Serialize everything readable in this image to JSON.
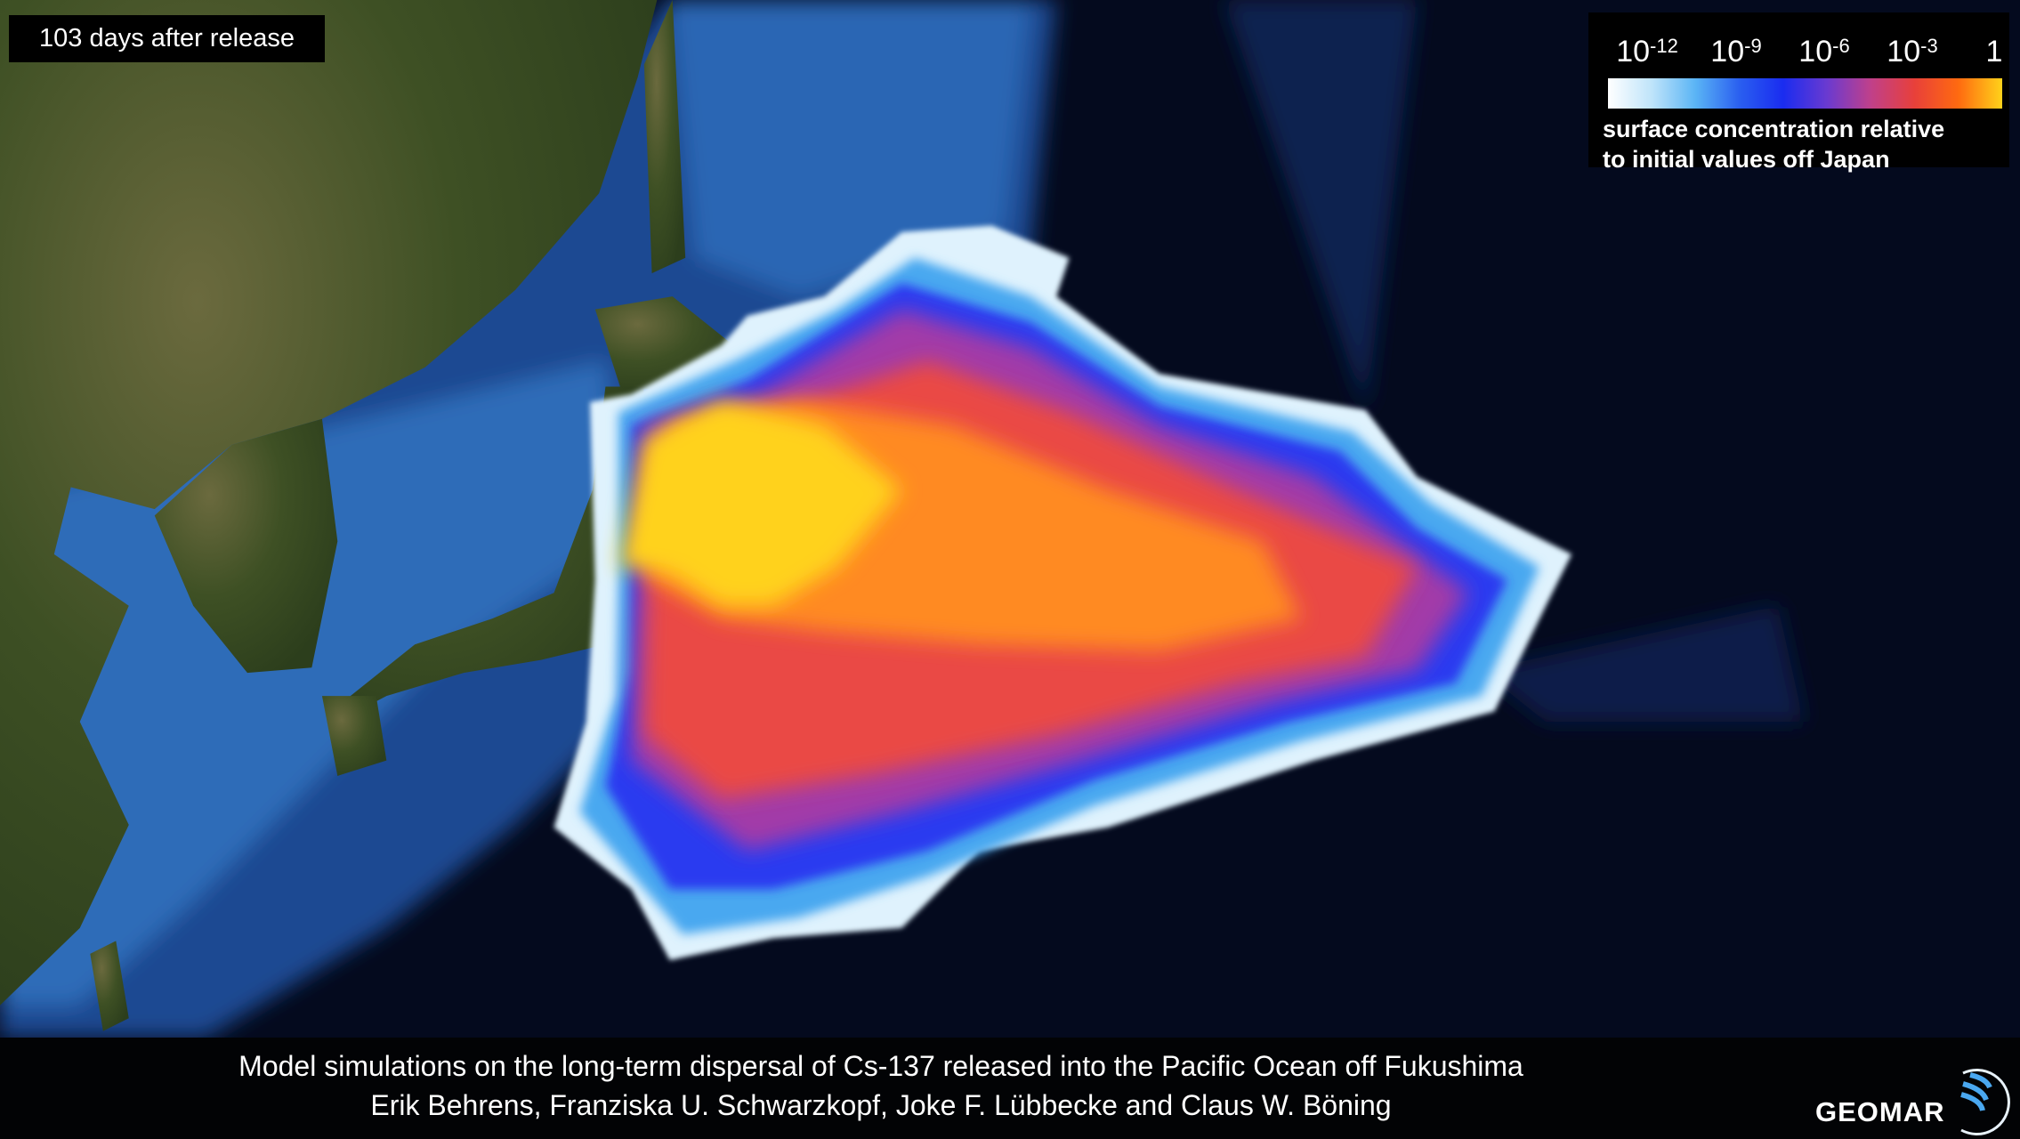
{
  "timestamp_label": "103 days after release",
  "legend": {
    "ticks": [
      {
        "base": "10",
        "exp": "-12"
      },
      {
        "base": "10",
        "exp": "-9"
      },
      {
        "base": "10",
        "exp": "-6"
      },
      {
        "base": "10",
        "exp": "-3"
      },
      {
        "base": "1",
        "exp": ""
      }
    ],
    "caption_line1": "surface concentration relative",
    "caption_line2": "to initial values off Japan",
    "colorscale": [
      "#ffffff",
      "#bfe4fa",
      "#5ab4f5",
      "#2a5ff0",
      "#1a2cf0",
      "#6a3ad0",
      "#c0408a",
      "#e8403a",
      "#ff6a10",
      "#ffd21a"
    ],
    "scale": "log"
  },
  "caption": {
    "line1": "Model simulations on the long-term dispersal of Cs-137 released into the Pacific Ocean off Fukushima",
    "line2": "Erik Behrens, Franziska U. Schwarzkopf, Joke F. Lübbecke and Claus W. Böning"
  },
  "logo": {
    "text": "GEOMAR"
  },
  "colors": {
    "deep_ocean": "#040a1e",
    "shelf_ocean": "#2a63b0",
    "land": "#3c4e22",
    "plume_high": "#ffd21a",
    "plume_mid": "#e8403a",
    "plume_low": "#2a3af0",
    "plume_edge": "#bfe4fa"
  }
}
